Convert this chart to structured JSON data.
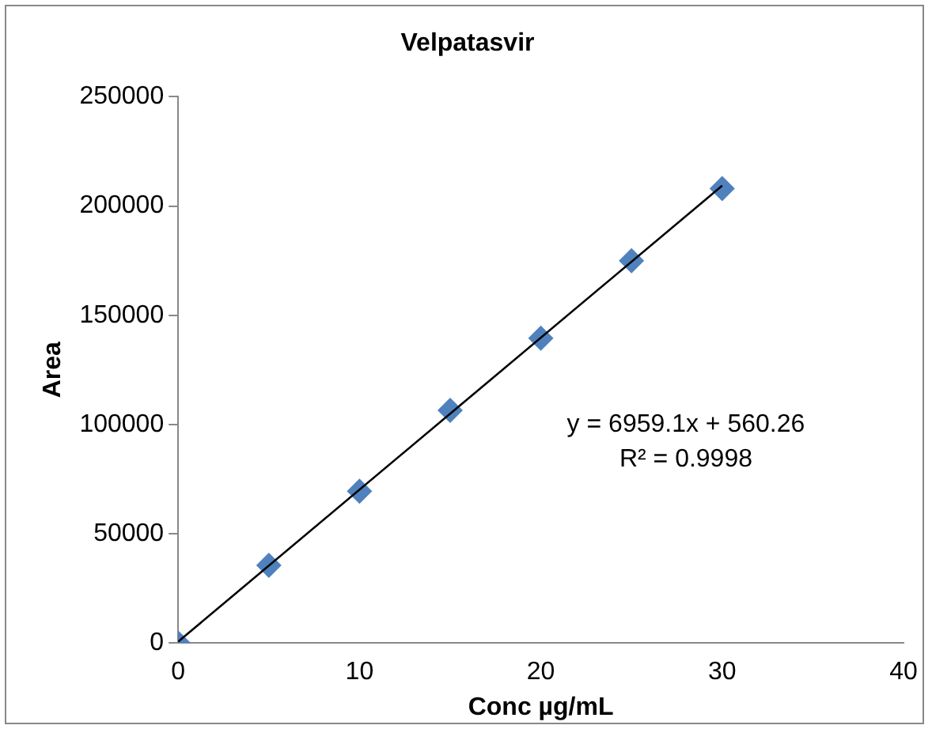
{
  "chart_data": {
    "type": "scatter",
    "title": "Velpatasvir",
    "xlabel": "Conc µg/mL",
    "ylabel": "Area",
    "xlim": [
      0,
      40
    ],
    "xticks": [
      0,
      10,
      20,
      30,
      40
    ],
    "ylim": [
      0,
      250000
    ],
    "yticks": [
      0,
      50000,
      100000,
      150000,
      200000,
      250000
    ],
    "grid": false,
    "legend": false,
    "marker": "diamond",
    "series": [
      {
        "color": "#4f81bd",
        "x": [
          0,
          5,
          10,
          15,
          20,
          25,
          30
        ],
        "values": [
          0,
          35500,
          69500,
          106500,
          139500,
          175000,
          208000
        ]
      },
      {
        "type": "line",
        "color": "#000000",
        "x": [
          0,
          30
        ],
        "values": [
          600,
          209300
        ],
        "marker": "none",
        "line_style": "solid"
      }
    ],
    "annotations": [
      "y = 6959.1x + 560.26",
      "R² = 0.9998"
    ]
  }
}
